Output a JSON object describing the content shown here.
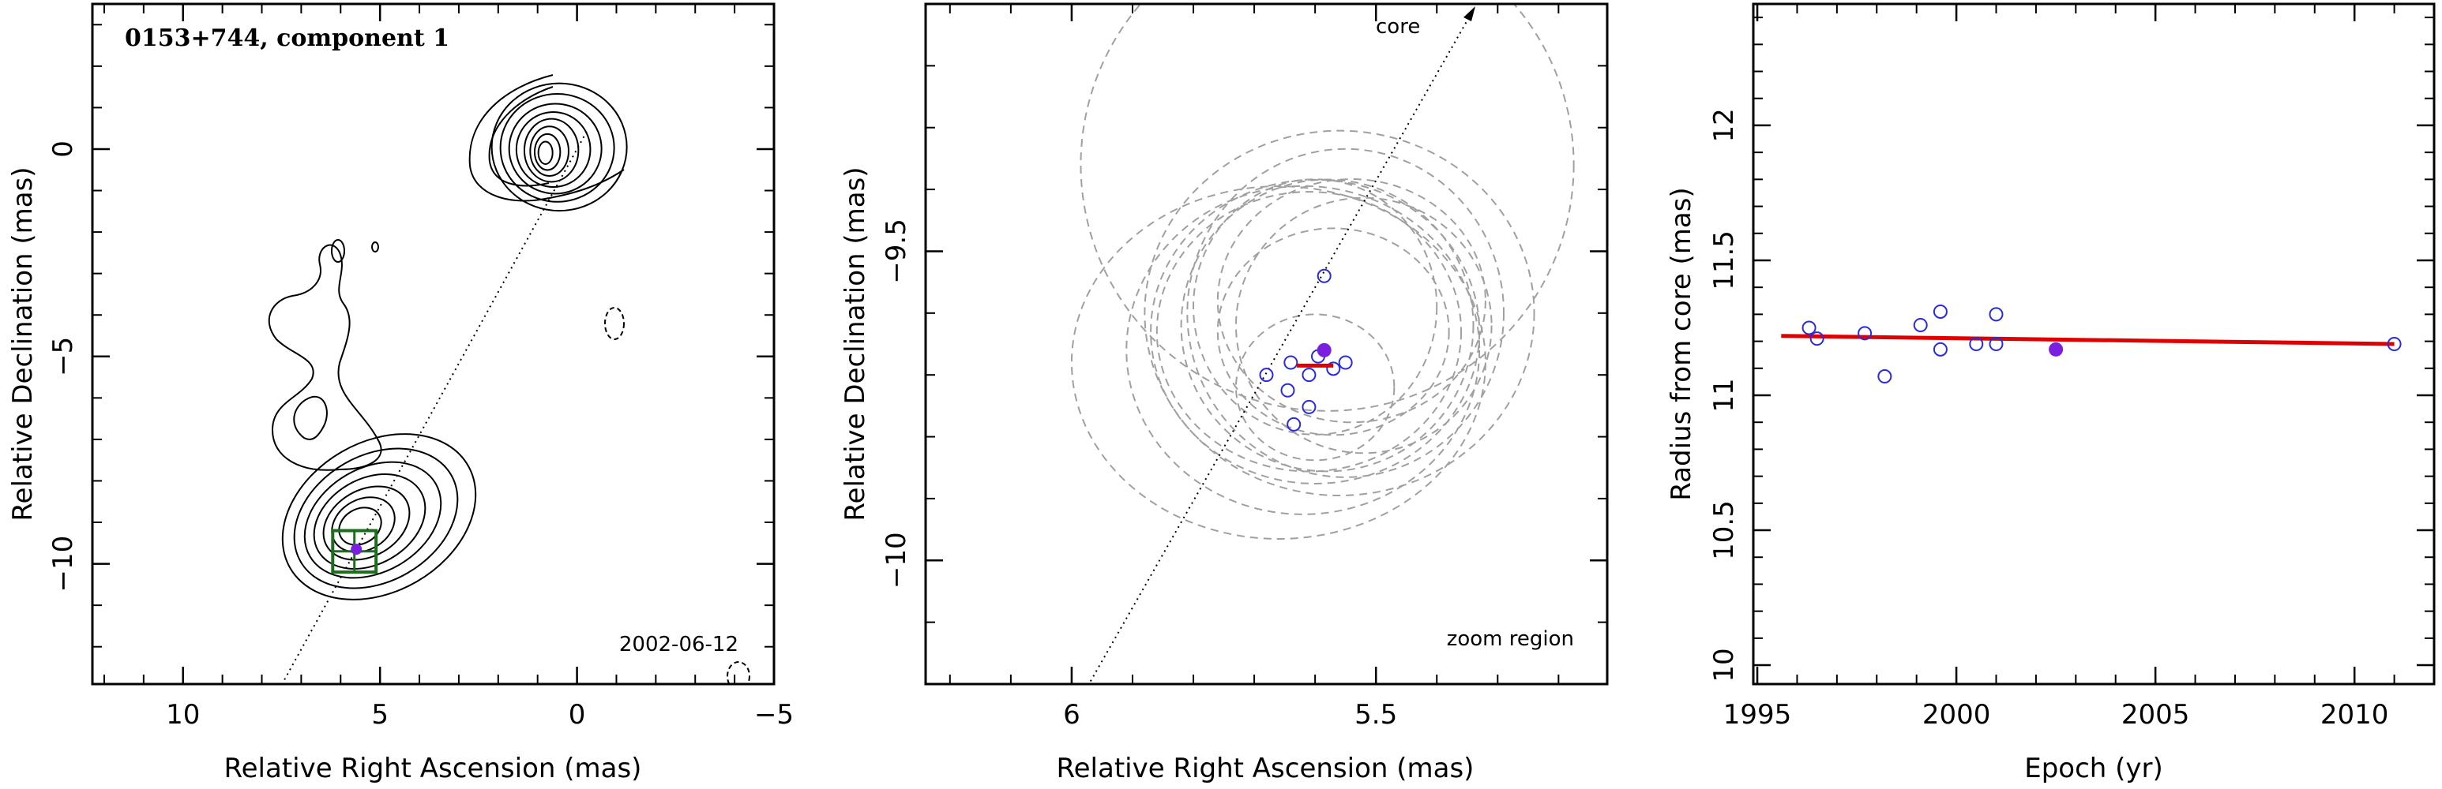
{
  "chart_data": [
    {
      "type": "contour",
      "title": "0153+744, component 1",
      "xlabel": "Relative Right Ascension (mas)",
      "ylabel": "Relative Declination (mas)",
      "xlim": [
        12.3,
        -5
      ],
      "ylim": [
        -12.9,
        3.5
      ],
      "xticks": [
        10,
        5,
        0,
        -5
      ],
      "yticks": [
        0,
        -5,
        -10
      ],
      "epoch_label": "2002-06-12",
      "component_position": {
        "ra": 5.6,
        "dec": -9.65
      },
      "zoom_box": {
        "ra_range": [
          6.2,
          5.1
        ],
        "dec_range": [
          -9.2,
          -10.2
        ]
      },
      "core_position": {
        "ra": 0,
        "dec": 0
      },
      "colors": {
        "contour": "#000000",
        "box": "#1b6e1b",
        "component": "#7a1fe0",
        "dotted_line": "#000000"
      }
    },
    {
      "type": "scatter",
      "xlabel": "Relative Right Ascension (mas)",
      "ylabel": "Relative Declination (mas)",
      "xlim": [
        6.24,
        5.12
      ],
      "ylim": [
        -10.2,
        -9.1
      ],
      "xticks": [
        6,
        5.5
      ],
      "yticks": [
        -9.5,
        -10
      ],
      "core_label": "core",
      "region_label": "zoom region",
      "points": [
        {
          "x": 5.68,
          "y": -9.7
        },
        {
          "x": 5.64,
          "y": -9.68
        },
        {
          "x": 5.595,
          "y": -9.67
        },
        {
          "x": 5.61,
          "y": -9.7
        },
        {
          "x": 5.55,
          "y": -9.68
        },
        {
          "x": 5.645,
          "y": -9.725
        },
        {
          "x": 5.585,
          "y": -9.54
        },
        {
          "x": 5.61,
          "y": -9.752
        },
        {
          "x": 5.57,
          "y": -9.69
        },
        {
          "x": 5.635,
          "y": -9.78
        }
      ],
      "highlight_point": {
        "x": 5.585,
        "y": -9.66
      },
      "motion_segment": {
        "x": [
          5.63,
          5.57
        ],
        "y": [
          -9.685,
          -9.685
        ]
      },
      "ellipses": [
        {
          "cx": 5.58,
          "cy": -9.36,
          "rx": 0.405,
          "ry": 0.405
        },
        {
          "cx": 5.56,
          "cy": -9.6,
          "rx": 0.32,
          "ry": 0.3
        },
        {
          "cx": 5.58,
          "cy": -9.62,
          "rx": 0.24,
          "ry": 0.24
        },
        {
          "cx": 5.6,
          "cy": -9.63,
          "rx": 0.27,
          "ry": 0.25
        },
        {
          "cx": 5.62,
          "cy": -9.66,
          "rx": 0.29,
          "ry": 0.27
        },
        {
          "cx": 5.55,
          "cy": -9.6,
          "rx": 0.26,
          "ry": 0.27
        },
        {
          "cx": 5.54,
          "cy": -9.58,
          "rx": 0.22,
          "ry": 0.2
        },
        {
          "cx": 5.6,
          "cy": -9.59,
          "rx": 0.2,
          "ry": 0.21
        },
        {
          "cx": 5.66,
          "cy": -9.68,
          "rx": 0.34,
          "ry": 0.29
        },
        {
          "cx": 5.57,
          "cy": -9.63,
          "rx": 0.19,
          "ry": 0.17
        },
        {
          "cx": 5.6,
          "cy": -9.72,
          "rx": 0.13,
          "ry": 0.12
        },
        {
          "cx": 5.61,
          "cy": -9.63,
          "rx": 0.25,
          "ry": 0.23
        },
        {
          "cx": 5.52,
          "cy": -9.62,
          "rx": 0.21,
          "ry": 0.21
        }
      ],
      "colors": {
        "points": "#2a2ae0",
        "highlight": "#7a1fe0",
        "segment": "#e00000",
        "ellipse": "#a0a0a0"
      }
    },
    {
      "type": "scatter",
      "xlabel": "Epoch (yr)",
      "ylabel": "Radius from core (mas)",
      "xlim": [
        1994.9,
        2012.0
      ],
      "ylim": [
        9.93,
        12.45
      ],
      "xticks": [
        1995,
        2000,
        2005,
        2010
      ],
      "yticks": [
        10,
        10.5,
        11,
        11.5,
        12
      ],
      "x": [
        1996.3,
        1996.5,
        1997.7,
        1998.2,
        1999.1,
        1999.6,
        1999.6,
        2000.5,
        2001.0,
        2001.0,
        2011.0
      ],
      "y": [
        11.25,
        11.21,
        11.23,
        11.07,
        11.26,
        11.31,
        11.17,
        11.19,
        11.3,
        11.19,
        11.19
      ],
      "highlight_point": {
        "x": 2002.5,
        "y": 11.17
      },
      "fit_line": {
        "x": [
          1995.6,
          2011.0
        ],
        "y": [
          11.22,
          11.19
        ]
      },
      "colors": {
        "points": "#2a2ae0",
        "highlight": "#7a1fe0",
        "fit": "#e00000"
      }
    }
  ]
}
